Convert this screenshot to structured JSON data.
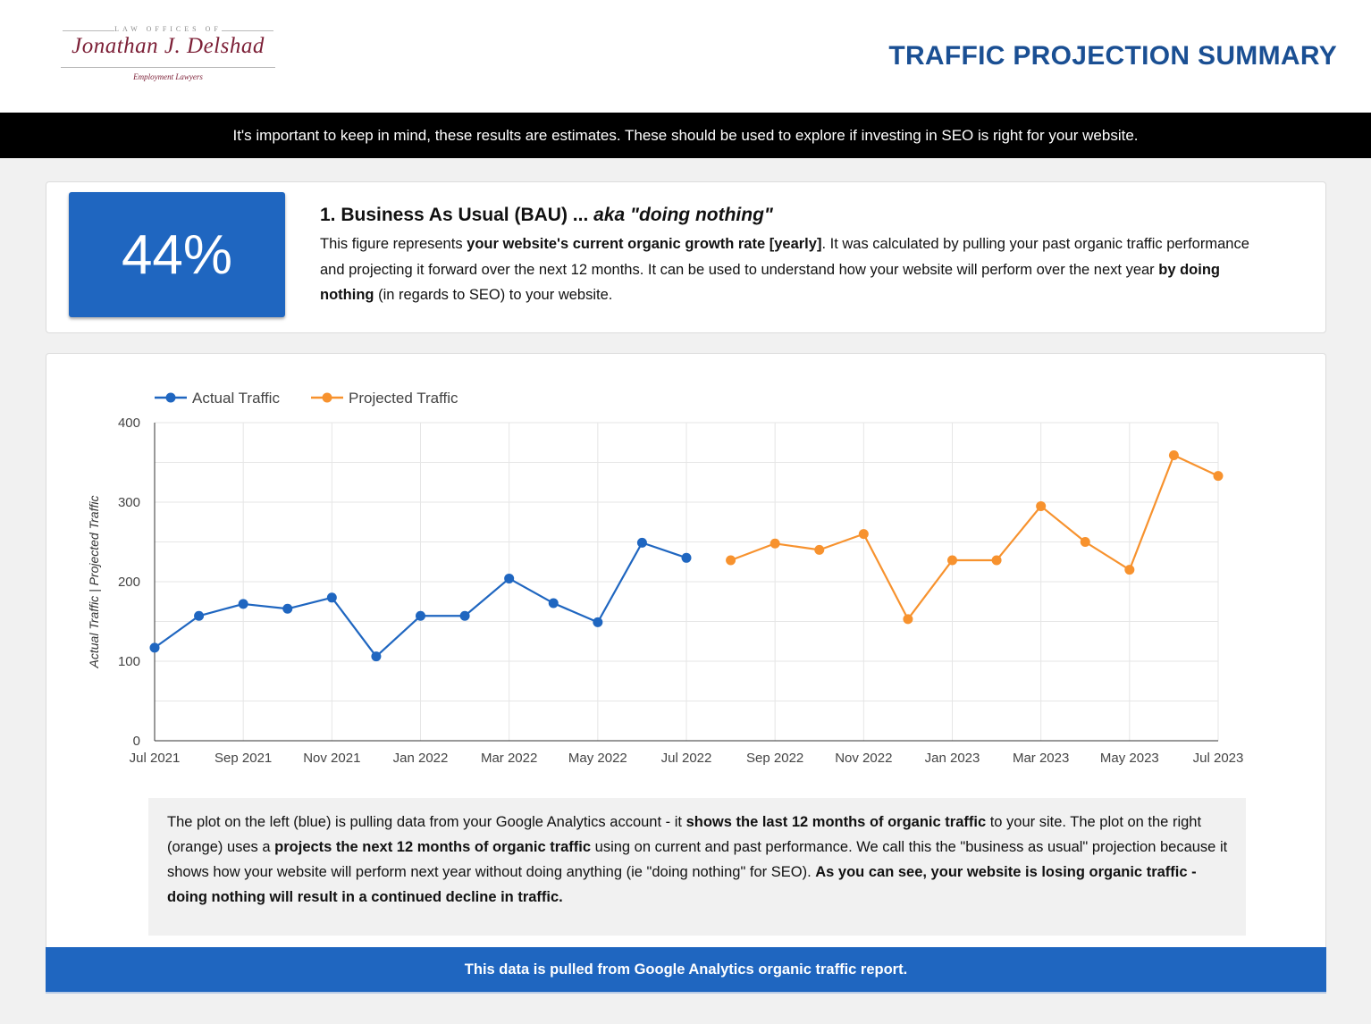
{
  "header": {
    "logo": {
      "top_text": "LAW OFFICES OF",
      "name": "Jonathan J. Delshad",
      "subtitle": "Employment Lawyers"
    },
    "title": "TRAFFIC PROJECTION SUMMARY"
  },
  "banner": {
    "text": "It's important to keep in mind, these results are estimates. These should be used to explore if investing in SEO is right for your website."
  },
  "bau": {
    "metric": "44%",
    "title_main": "1. Business As Usual (BAU) ... ",
    "title_em": "aka \"doing nothing\"",
    "desc": [
      {
        "t": "This figure represents ",
        "b": false
      },
      {
        "t": "your website's current organic growth rate [yearly]",
        "b": true
      },
      {
        "t": ". It was calculated by pulling your past organic traffic performance and projecting it forward over the next 12 months. It can be used to understand how your website will perform over the next year ",
        "b": false
      },
      {
        "t": "by doing nothing",
        "b": true
      },
      {
        "t": " (in regards to SEO) to your website.",
        "b": false
      }
    ]
  },
  "note": [
    {
      "t": "The plot on the left (blue) is pulling data from your Google Analytics account - it ",
      "b": false
    },
    {
      "t": "shows the last 12 months of organic traffic",
      "b": true
    },
    {
      "t": " to your site. The plot on the right (orange) uses a ",
      "b": false
    },
    {
      "t": "projects the next 12 months of organic traffic",
      "b": true
    },
    {
      "t": " using on current and past performance.  We call this the \"business as usual\" projection because it shows how your website will perform next year without doing anything (ie \"doing nothing\" for SEO).  ",
      "b": false
    },
    {
      "t": "As you can see, your website is losing organic traffic - doing nothing will result in a continued decline in traffic.",
      "b": true
    }
  ],
  "footer": {
    "text": "This data is pulled from Google Analytics organic traffic report."
  },
  "colors": {
    "actual": "#1f66c0",
    "projected": "#f7922e",
    "title": "#1a4f93",
    "metric_box": "#1f66c0"
  },
  "chart_data": {
    "type": "line",
    "ylabel": "Actual Traffic | Projected Traffic",
    "xlabel": "",
    "ylim": [
      0,
      400
    ],
    "yticks": [
      0,
      100,
      200,
      300,
      400
    ],
    "grid": true,
    "legend_position": "top-left",
    "x": [
      "Jul 2021",
      "Aug 2021",
      "Sep 2021",
      "Oct 2021",
      "Nov 2021",
      "Dec 2021",
      "Jan 2022",
      "Feb 2022",
      "Mar 2022",
      "Apr 2022",
      "May 2022",
      "Jun 2022",
      "Jul 2022",
      "Aug 2022",
      "Sep 2022",
      "Oct 2022",
      "Nov 2022",
      "Dec 2022",
      "Jan 2023",
      "Feb 2023",
      "Mar 2023",
      "Apr 2023",
      "May 2023",
      "Jun 2023",
      "Jul 2023"
    ],
    "xtick_labels": [
      "Jul 2021",
      "Sep 2021",
      "Nov 2021",
      "Jan 2022",
      "Mar 2022",
      "May 2022",
      "Jul 2022",
      "Sep 2022",
      "Nov 2022",
      "Jan 2023",
      "Mar 2023",
      "May 2023",
      "Jul 2023"
    ],
    "series": [
      {
        "name": "Actual Traffic",
        "color": "#1f66c0",
        "values": [
          117,
          157,
          172,
          166,
          180,
          106,
          157,
          157,
          204,
          173,
          149,
          249,
          230,
          null,
          null,
          null,
          null,
          null,
          null,
          null,
          null,
          null,
          null,
          null,
          null
        ]
      },
      {
        "name": "Projected Traffic",
        "color": "#f7922e",
        "values": [
          null,
          null,
          null,
          null,
          null,
          null,
          null,
          null,
          null,
          null,
          null,
          null,
          null,
          227,
          248,
          240,
          260,
          153,
          227,
          227,
          295,
          250,
          215,
          359,
          333
        ]
      }
    ]
  }
}
